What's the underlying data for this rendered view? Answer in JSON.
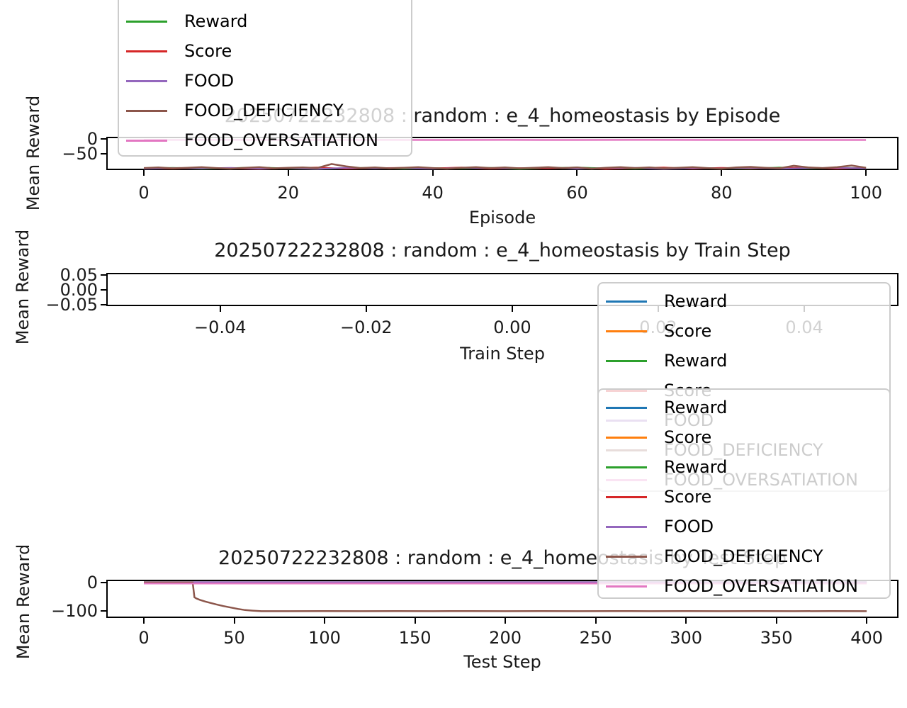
{
  "figure": {
    "background": "#ffffff",
    "text_color": "#1a1a1a",
    "faded_overlay": "rgba(255,255,255,0.8)"
  },
  "chart_data": [
    {
      "type": "line",
      "title": "20250722232808 : random : e_4_homeostasis by Episode",
      "xlabel": "Episode",
      "ylabel": "Mean Reward",
      "xlim": [
        -5.2,
        104.5
      ],
      "ylim": [
        -107,
        8
      ],
      "grid": false,
      "xticks": {
        "values": [
          0,
          20,
          40,
          60,
          80,
          100
        ],
        "labels": [
          "0",
          "20",
          "40",
          "60",
          "80",
          "100"
        ]
      },
      "yticks": {
        "values": [
          0,
          -50
        ],
        "labels": [
          "0",
          "−50"
        ]
      },
      "legend_position": "upper-left-clipped",
      "legend": {
        "items": [
          {
            "label": "Reward",
            "color": "#2ca02c"
          },
          {
            "label": "Score",
            "color": "#d62728"
          },
          {
            "label": "FOOD",
            "color": "#9467bd"
          },
          {
            "label": "FOOD_DEFICIENCY",
            "color": "#8c564b"
          },
          {
            "label": "FOOD_OVERSATIATION",
            "color": "#e377c2"
          }
        ]
      },
      "series": [
        {
          "name": "Reward",
          "color": "#2ca02c",
          "width": 2,
          "x": [
            0,
            4,
            8,
            12,
            16,
            20,
            24,
            28,
            32,
            36,
            40,
            44,
            48,
            52,
            56,
            60,
            64,
            68,
            72,
            76,
            80,
            84,
            88,
            92,
            96,
            100
          ],
          "y": [
            -101,
            -99,
            -102,
            -100,
            -98,
            -101,
            -103,
            -100,
            -99,
            -102,
            -100,
            -101,
            -99,
            -103,
            -100,
            -98,
            -101,
            -102,
            -99,
            -101,
            -100,
            -102,
            -98,
            -101,
            -99,
            -100
          ]
        },
        {
          "name": "Score",
          "color": "#d62728",
          "width": 2,
          "x": [
            0,
            4,
            8,
            12,
            16,
            20,
            24,
            28,
            32,
            36,
            40,
            44,
            48,
            52,
            56,
            60,
            64,
            68,
            72,
            76,
            80,
            84,
            88,
            92,
            96,
            100
          ],
          "y": [
            -100,
            -102,
            -99,
            -101,
            -103,
            -100,
            -98,
            -102,
            -100,
            -99,
            -101,
            -98,
            -102,
            -100,
            -101,
            -99,
            -103,
            -100,
            -98,
            -102,
            -99,
            -101,
            -100,
            -98,
            -102,
            -99
          ]
        },
        {
          "name": "FOOD",
          "color": "#9467bd",
          "width": 2,
          "x": [
            0,
            4,
            8,
            12,
            16,
            20,
            24,
            28,
            32,
            36,
            40,
            44,
            48,
            52,
            56,
            60,
            64,
            68,
            72,
            76,
            80,
            84,
            88,
            92,
            96,
            100
          ],
          "y": [
            -102,
            -100,
            -101,
            -99,
            -102,
            -100,
            -103,
            -99,
            -101,
            -100,
            -102,
            -99,
            -100,
            -101,
            -98,
            -102,
            -100,
            -99,
            -103,
            -100,
            -101,
            -99,
            -102,
            -100,
            -99,
            -101
          ]
        },
        {
          "name": "FOOD_DEFICIENCY",
          "color": "#8c564b",
          "width": 2.5,
          "x": [
            0,
            2,
            4,
            6,
            8,
            10,
            12,
            14,
            16,
            18,
            20,
            22,
            24,
            26,
            28,
            30,
            32,
            34,
            36,
            38,
            40,
            42,
            44,
            46,
            48,
            50,
            52,
            54,
            56,
            58,
            60,
            62,
            64,
            66,
            68,
            70,
            72,
            74,
            76,
            78,
            80,
            82,
            84,
            86,
            88,
            90,
            92,
            94,
            96,
            98,
            100
          ],
          "y": [
            -100,
            -98,
            -101,
            -99,
            -97,
            -100,
            -102,
            -99,
            -97,
            -101,
            -99,
            -98,
            -100,
            -86,
            -94,
            -100,
            -98,
            -101,
            -99,
            -97,
            -100,
            -102,
            -99,
            -97,
            -100,
            -98,
            -101,
            -99,
            -97,
            -100,
            -98,
            -102,
            -99,
            -97,
            -100,
            -98,
            -101,
            -99,
            -97,
            -100,
            -102,
            -98,
            -96,
            -99,
            -101,
            -92,
            -98,
            -100,
            -97,
            -91,
            -99
          ]
        },
        {
          "name": "FOOD_OVERSATIATION",
          "color": "#e377c2",
          "width": 2.5,
          "x": [
            0,
            10,
            20,
            30,
            40,
            50,
            60,
            70,
            80,
            90,
            100
          ],
          "y": [
            -3,
            -2.6,
            -3.1,
            -2.8,
            -3,
            -2.7,
            -3.1,
            -2.8,
            -3,
            -2.9,
            -3
          ]
        }
      ]
    },
    {
      "type": "line",
      "title": "20250722232808 : random : e_4_homeostasis by Train Step",
      "xlabel": "Train Step",
      "ylabel": "Mean Reward",
      "xlim": [
        -0.0556,
        0.0529
      ],
      "ylim": [
        -0.0548,
        0.0571
      ],
      "grid": false,
      "xticks": {
        "values": [
          -0.04,
          -0.02,
          0.0,
          0.02,
          0.04
        ],
        "labels": [
          "−0.04",
          "−0.02",
          "0.00",
          "0.02",
          "0.04"
        ]
      },
      "yticks": {
        "values": [
          0.05,
          0.0,
          -0.05
        ],
        "labels": [
          "0.05",
          "0.00",
          "−0.05"
        ]
      },
      "legend_position": "upper-right",
      "legend": {
        "items": [
          {
            "label": "Reward",
            "color": "#1f77b4"
          },
          {
            "label": "Score",
            "color": "#ff7f0e"
          },
          {
            "label": "Reward",
            "color": "#2ca02c"
          },
          {
            "label": "Score",
            "color": "#d62728"
          },
          {
            "label": "FOOD",
            "color": "#9467bd"
          },
          {
            "label": "FOOD_DEFICIENCY",
            "color": "#8c564b"
          },
          {
            "label": "FOOD_OVERSATIATION",
            "color": "#e377c2"
          }
        ]
      },
      "series": []
    },
    {
      "type": "line",
      "title": "20250722232808 : random : e_4_homeostasis by Test Step",
      "xlabel": "Test Step",
      "ylabel": "Mean Reward",
      "xlim": [
        -20.8,
        417.6
      ],
      "ylim": [
        -125,
        10
      ],
      "grid": false,
      "xticks": {
        "values": [
          0,
          50,
          100,
          150,
          200,
          250,
          300,
          350,
          400
        ],
        "labels": [
          "0",
          "50",
          "100",
          "150",
          "200",
          "250",
          "300",
          "350",
          "400"
        ]
      },
      "yticks": {
        "values": [
          0,
          -100
        ],
        "labels": [
          "0",
          "−100"
        ]
      },
      "legend_position": "lower-right-overlapping",
      "legend": {
        "items": [
          {
            "label": "Reward",
            "color": "#1f77b4"
          },
          {
            "label": "Score",
            "color": "#ff7f0e"
          },
          {
            "label": "Reward",
            "color": "#2ca02c"
          },
          {
            "label": "Score",
            "color": "#d62728"
          },
          {
            "label": "FOOD",
            "color": "#9467bd"
          },
          {
            "label": "FOOD_DEFICIENCY",
            "color": "#8c564b"
          },
          {
            "label": "FOOD_OVERSATIATION",
            "color": "#e377c2"
          }
        ]
      },
      "series": [
        {
          "name": "Reward",
          "color": "#1f77b4",
          "width": 2,
          "x": [
            0,
            400
          ],
          "y": [
            1.8,
            1.8
          ]
        },
        {
          "name": "Score",
          "color": "#ff7f0e",
          "width": 2,
          "x": [
            0,
            400
          ],
          "y": [
            1.4,
            1.4
          ]
        },
        {
          "name": "Reward",
          "color": "#2ca02c",
          "width": 2,
          "x": [
            0,
            400
          ],
          "y": [
            1.0,
            1.0
          ]
        },
        {
          "name": "Score",
          "color": "#d62728",
          "width": 2,
          "x": [
            0,
            400
          ],
          "y": [
            0.6,
            0.6
          ]
        },
        {
          "name": "FOOD",
          "color": "#9467bd",
          "width": 2,
          "x": [
            0,
            400
          ],
          "y": [
            1.6,
            1.6
          ]
        },
        {
          "name": "FOOD_DEFICIENCY",
          "color": "#8c564b",
          "width": 2.5,
          "x": [
            0,
            27,
            28,
            29,
            31,
            34,
            37,
            40,
            44,
            48,
            52,
            56,
            60,
            65,
            70,
            80,
            100,
            120,
            140,
            160,
            180,
            200,
            220,
            240,
            260,
            280,
            300,
            320,
            340,
            360,
            380,
            400
          ],
          "y": [
            0.3,
            0.3,
            -52,
            -56,
            -61,
            -67,
            -72,
            -77,
            -83,
            -88,
            -93,
            -97,
            -99,
            -101,
            -101,
            -101,
            -100.5,
            -101,
            -100.5,
            -101,
            -100.5,
            -101,
            -100.5,
            -101,
            -100.5,
            -101,
            -100.5,
            -101,
            -100.5,
            -101,
            -100.5,
            -101
          ]
        },
        {
          "name": "FOOD_OVERSATIATION",
          "color": "#e377c2",
          "width": 2.5,
          "x": [
            0,
            400
          ],
          "y": [
            -3,
            -3
          ]
        }
      ]
    }
  ]
}
